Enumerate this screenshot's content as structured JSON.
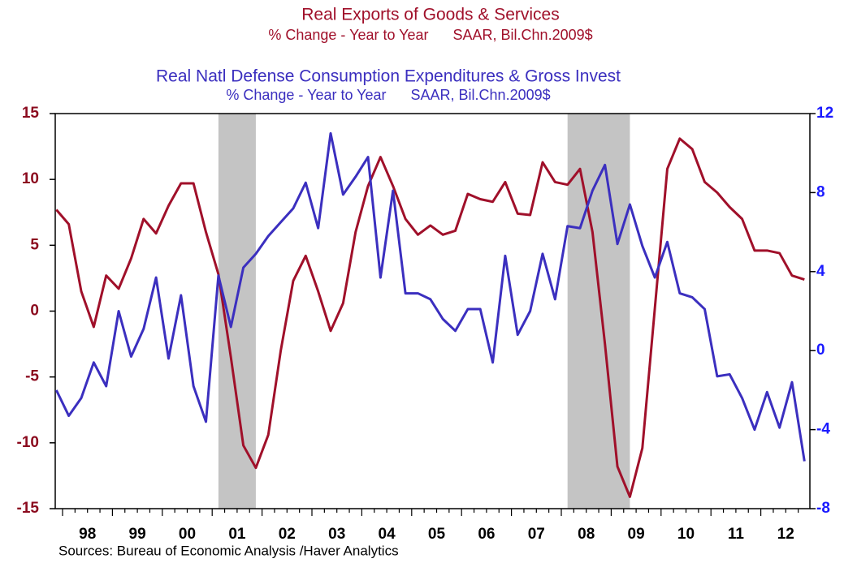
{
  "chart_data": {
    "type": "line",
    "series": [
      {
        "name": "Real Exports of Goods & Services",
        "subtitle": "% Change - Year to Year      SAAR, Bil.Chn.2009$",
        "color": "#a0102a",
        "axis": "y",
        "values": [
          7.7,
          6.6,
          1.5,
          -1.2,
          2.7,
          1.7,
          4.0,
          7.0,
          5.9,
          8.0,
          9.7,
          9.7,
          6.0,
          2.8,
          -3.5,
          -10.2,
          -11.9,
          -9.4,
          -3.0,
          2.3,
          4.2,
          1.5,
          -1.5,
          0.6,
          6.0,
          9.5,
          11.7,
          9.5,
          7.0,
          5.8,
          6.5,
          5.8,
          6.1,
          8.9,
          8.5,
          8.3,
          9.8,
          7.4,
          7.3,
          11.3,
          9.8,
          9.6,
          10.8,
          6.0,
          -2.5,
          -11.8,
          -14.1,
          -10.4,
          0.2,
          10.8,
          13.1,
          12.3,
          9.8,
          9.0,
          7.9,
          7.0,
          4.6,
          4.6,
          4.4,
          2.7,
          2.4
        ]
      },
      {
        "name": "Real Natl Defense Consumption Expenditures & Gross Invest",
        "subtitle": "% Change - Year to Year      SAAR, Bil.Chn.2009$",
        "color": "#3b2fbf",
        "axis": "y2",
        "values": [
          -2.0,
          -3.3,
          -2.4,
          -0.6,
          -1.8,
          2.0,
          -0.3,
          1.1,
          3.7,
          -0.4,
          2.8,
          -1.8,
          -3.6,
          3.8,
          1.2,
          4.2,
          4.9,
          5.8,
          6.5,
          7.2,
          8.5,
          6.2,
          11.0,
          7.9,
          8.8,
          9.8,
          3.7,
          8.1,
          2.9,
          2.9,
          2.6,
          1.6,
          1.0,
          2.1,
          2.1,
          -0.6,
          4.8,
          0.8,
          2.0,
          4.9,
          2.6,
          6.3,
          6.2,
          8.1,
          9.4,
          5.4,
          7.4,
          5.3,
          3.7,
          5.5,
          2.9,
          2.7,
          2.1,
          -1.3,
          -1.2,
          -2.4,
          -4.0,
          -2.1,
          -3.9,
          -1.6,
          -5.6
        ]
      }
    ],
    "categories": [
      null,
      null,
      "98",
      null,
      null,
      null,
      "99",
      null,
      null,
      null,
      "00",
      null,
      null,
      null,
      "01",
      null,
      null,
      null,
      "02",
      null,
      null,
      null,
      "03",
      null,
      null,
      null,
      "04",
      null,
      null,
      null,
      "05",
      null,
      null,
      null,
      "06",
      null,
      null,
      null,
      "07",
      null,
      null,
      null,
      "08",
      null,
      null,
      null,
      "09",
      null,
      null,
      null,
      "10",
      null,
      null,
      null,
      "11",
      null,
      null,
      null,
      "12",
      null,
      null
    ],
    "ylim": [
      -15,
      15
    ],
    "yticks": [
      -15,
      -10,
      -5,
      0,
      5,
      10,
      15
    ],
    "y2lim": [
      -8,
      12
    ],
    "y2ticks": [
      -8,
      -4,
      0,
      4,
      8,
      12
    ],
    "recession_shading": [
      [
        13,
        16
      ],
      [
        41,
        46
      ]
    ],
    "source": "Sources:  Bureau of Economic Analysis /Haver Analytics"
  }
}
